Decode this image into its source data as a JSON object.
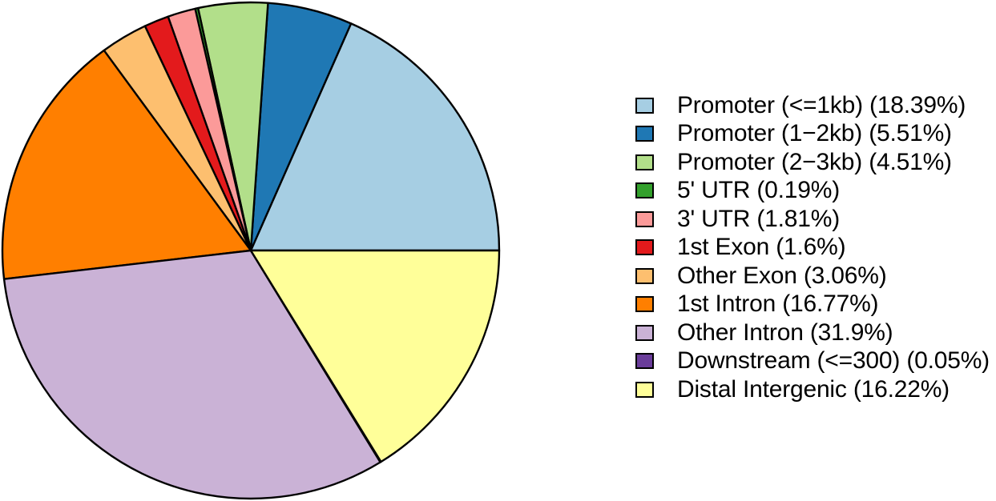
{
  "figure": {
    "background_color": "#ffffff",
    "text_color": "#000000",
    "slice_border_color": "#000000"
  },
  "chart_data": {
    "type": "pie",
    "title": "",
    "categories": [
      "Promoter (<=1kb)",
      "Promoter (1−2kb)",
      "Promoter (2−3kb)",
      "5' UTR",
      "3' UTR",
      "1st Exon",
      "Other Exon",
      "1st Intron",
      "Other Intron",
      "Downstream (<=300)",
      "Distal Intergenic"
    ],
    "values": [
      18.39,
      5.51,
      4.51,
      0.19,
      1.81,
      1.6,
      3.06,
      16.77,
      31.9,
      0.05,
      16.22
    ],
    "colors": [
      "#A6CEE3",
      "#1F78B4",
      "#B2DF8A",
      "#33A02C",
      "#FB9A99",
      "#E31A1C",
      "#FDBF6F",
      "#FF7F00",
      "#CAB2D6",
      "#6A3D9A",
      "#FFFF99"
    ],
    "legend_labels": [
      "Promoter (<=1kb) (18.39%)",
      "Promoter (1−2kb) (5.51%)",
      "Promoter (2−3kb) (4.51%)",
      "5' UTR (0.19%)",
      "3' UTR (1.81%)",
      "1st Exon (1.6%)",
      "Other Exon (3.06%)",
      "1st Intron (16.77%)",
      "Other Intron (31.9%)",
      "Downstream (<=300) (0.05%)",
      "Distal Intergenic (16.22%)"
    ],
    "legend_position": "right",
    "start_angle_deg": 0,
    "direction": "counterclockwise",
    "unit": "percent"
  }
}
